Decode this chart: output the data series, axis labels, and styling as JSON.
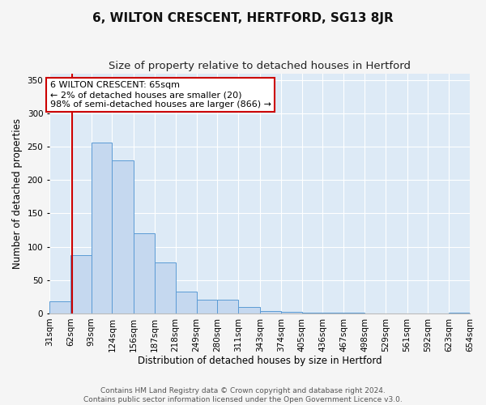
{
  "title": "6, WILTON CRESCENT, HERTFORD, SG13 8JR",
  "subtitle": "Size of property relative to detached houses in Hertford",
  "xlabel": "Distribution of detached houses by size in Hertford",
  "ylabel": "Number of detached properties",
  "footer_line1": "Contains HM Land Registry data © Crown copyright and database right 2024.",
  "footer_line2": "Contains public sector information licensed under the Open Government Licence v3.0.",
  "bin_edges": [
    31,
    62,
    93,
    124,
    156,
    187,
    218,
    249,
    280,
    311,
    343,
    374,
    405,
    436,
    467,
    498,
    529,
    561,
    592,
    623,
    654
  ],
  "bar_heights": [
    18,
    88,
    256,
    229,
    120,
    77,
    33,
    20,
    20,
    10,
    4,
    2,
    1,
    1,
    1,
    0,
    0,
    0,
    0,
    1
  ],
  "bar_color": "#c5d8ef",
  "bar_edge_color": "#5b9bd5",
  "red_line_x": 65,
  "annotation_line1": "6 WILTON CRESCENT: 65sqm",
  "annotation_line2": "← 2% of detached houses are smaller (20)",
  "annotation_line3": "98% of semi-detached houses are larger (866) →",
  "annotation_box_facecolor": "#ffffff",
  "annotation_box_edgecolor": "#cc0000",
  "red_line_color": "#cc0000",
  "ylim": [
    0,
    360
  ],
  "yticks": [
    0,
    50,
    100,
    150,
    200,
    250,
    300,
    350
  ],
  "background_color": "#ddeaf6",
  "grid_color": "#ffffff",
  "title_fontsize": 11,
  "subtitle_fontsize": 9.5,
  "axis_label_fontsize": 8.5,
  "tick_fontsize": 7.5,
  "annotation_fontsize": 8,
  "footer_fontsize": 6.5
}
